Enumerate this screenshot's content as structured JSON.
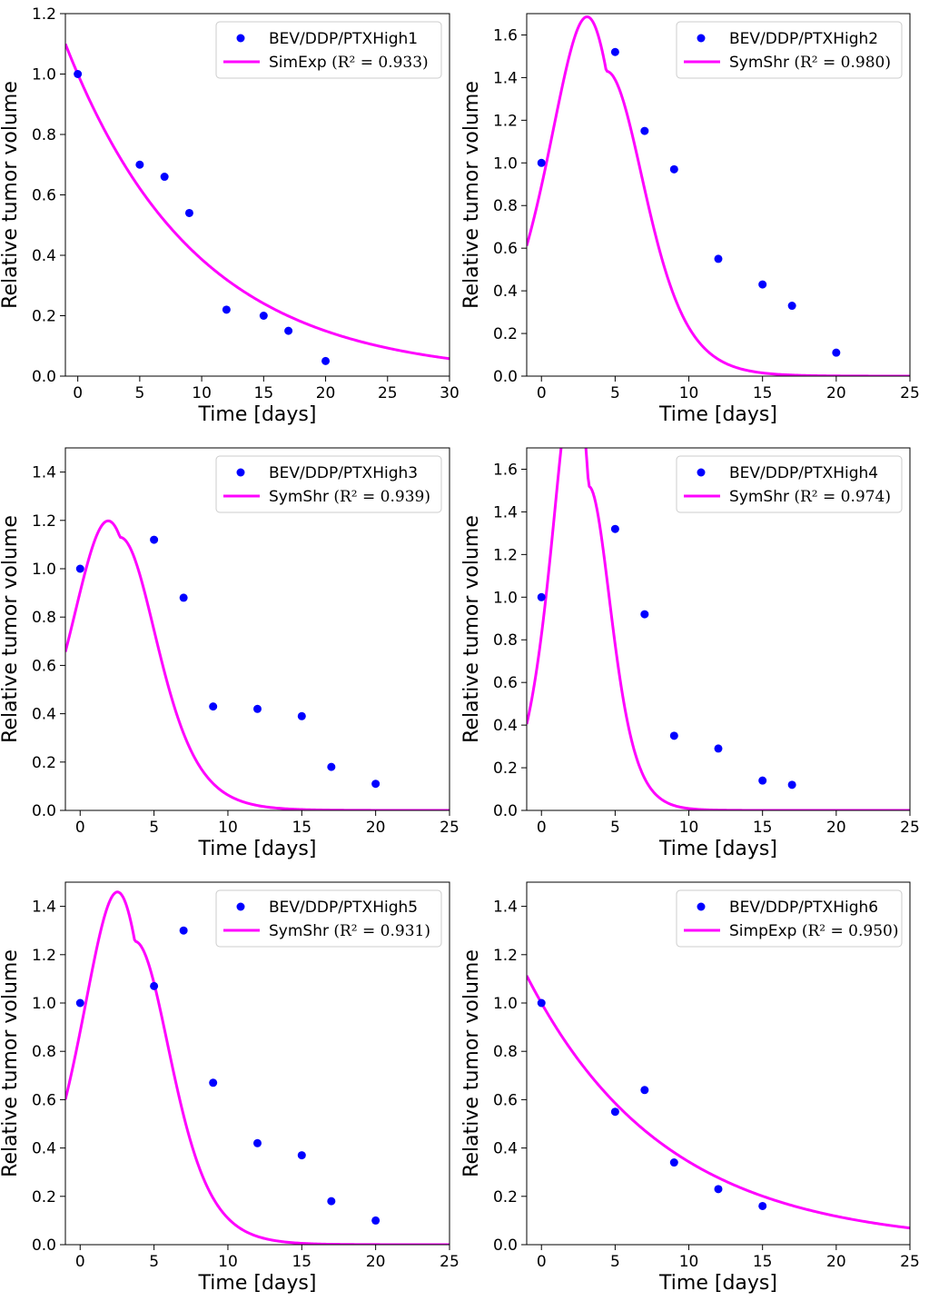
{
  "chart_data": [
    {
      "type": "scatter+line",
      "xlabel": "Time [days]",
      "ylabel": "Relative tumor volume",
      "xlim": [
        -1,
        30
      ],
      "ylim": [
        0,
        1.2
      ],
      "xticks": [
        0,
        5,
        10,
        15,
        20,
        25,
        30
      ],
      "yticks": [
        "0.0",
        "0.2",
        "0.4",
        "0.6",
        "0.8",
        "1.0",
        "1.2"
      ],
      "data_label": "BEV/DDP/PTXHigh1",
      "fit_label": "SimExp",
      "r2_label": "(R² = 0.933)",
      "data_points": {
        "x": [
          0,
          5,
          7,
          9,
          12,
          15,
          17,
          20
        ],
        "y": [
          1.0,
          0.7,
          0.66,
          0.54,
          0.22,
          0.2,
          0.15,
          0.05
        ]
      },
      "fit": {
        "model": "exponential",
        "a": 1.0,
        "b": 0.095
      }
    },
    {
      "type": "scatter+line",
      "xlabel": "Time [days]",
      "ylabel": "Relative tumor volume",
      "xlim": [
        -1,
        25
      ],
      "ylim": [
        0,
        1.7
      ],
      "xticks": [
        0,
        5,
        10,
        15,
        20,
        25
      ],
      "yticks": [
        "0.0",
        "0.2",
        "0.4",
        "0.6",
        "0.8",
        "1.0",
        "1.2",
        "1.4",
        "1.6"
      ],
      "data_label": "BEV/DDP/PTXHigh2",
      "fit_label": "SymShr",
      "r2_label": "(R² = 0.980)",
      "data_points": {
        "x": [
          0,
          5,
          7,
          9,
          12,
          15,
          17,
          20
        ],
        "y": [
          1.0,
          1.52,
          1.15,
          0.97,
          0.55,
          0.43,
          0.33,
          0.11
        ]
      },
      "fit": {
        "model": "logistic-shrink",
        "A": 1.43,
        "t0": 4.4,
        "w": 1.0,
        "k": 0.28
      }
    },
    {
      "type": "scatter+line",
      "xlabel": "Time [days]",
      "ylabel": "Relative tumor volume",
      "xlim": [
        -1,
        25
      ],
      "ylim": [
        0,
        1.5
      ],
      "xticks": [
        0,
        5,
        10,
        15,
        20,
        25
      ],
      "yticks": [
        "0.0",
        "0.2",
        "0.4",
        "0.6",
        "0.8",
        "1.0",
        "1.2",
        "1.4"
      ],
      "data_label": "BEV/DDP/PTXHigh3",
      "fit_label": "SymShr",
      "r2_label": "(R² = 0.939)",
      "data_points": {
        "x": [
          0,
          5,
          7,
          9,
          12,
          15,
          17,
          20
        ],
        "y": [
          1.0,
          1.12,
          0.88,
          0.43,
          0.42,
          0.39,
          0.18,
          0.11
        ]
      },
      "fit": {
        "model": "logistic-shrink",
        "A": 1.13,
        "t0": 2.7,
        "w": 0.5,
        "k": 0.29
      }
    },
    {
      "type": "scatter+line",
      "xlabel": "Time [days]",
      "ylabel": "Relative tumor volume",
      "xlim": [
        -1,
        25
      ],
      "ylim": [
        0,
        1.7
      ],
      "xticks": [
        0,
        5,
        10,
        15,
        20,
        25
      ],
      "yticks": [
        "0.0",
        "0.2",
        "0.4",
        "0.6",
        "0.8",
        "1.0",
        "1.2",
        "1.4",
        "1.6"
      ],
      "data_label": "BEV/DDP/PTXHigh4",
      "fit_label": "SymShr",
      "r2_label": "(R² = 0.974)",
      "data_points": {
        "x": [
          0,
          5,
          7,
          9,
          12,
          15,
          17
        ],
        "y": [
          1.0,
          1.32,
          0.92,
          0.35,
          0.29,
          0.14,
          0.12
        ]
      },
      "fit": {
        "model": "logistic-shrink",
        "A": 1.52,
        "t0": 3.2,
        "w": 0.5,
        "k": 0.48
      }
    },
    {
      "type": "scatter+line",
      "xlabel": "Time [days]",
      "ylabel": "Relative tumor volume",
      "xlim": [
        -1,
        25
      ],
      "ylim": [
        0,
        1.5
      ],
      "xticks": [
        0,
        5,
        10,
        15,
        20,
        25
      ],
      "yticks": [
        "0.0",
        "0.2",
        "0.4",
        "0.6",
        "0.8",
        "1.0",
        "1.2",
        "1.4"
      ],
      "data_label": "BEV/DDP/PTXHigh5",
      "fit_label": "SymShr",
      "r2_label": "(R² = 0.931)",
      "data_points": {
        "x": [
          0,
          5,
          7,
          9,
          12,
          15,
          17,
          20
        ],
        "y": [
          1.0,
          1.07,
          1.3,
          0.67,
          0.42,
          0.37,
          0.18,
          0.1
        ]
      },
      "fit": {
        "model": "logistic-shrink",
        "A": 1.255,
        "t0": 3.7,
        "w": 0.7,
        "k": 0.3
      }
    },
    {
      "type": "scatter+line",
      "xlabel": "Time [days]",
      "ylabel": "Relative tumor volume",
      "xlim": [
        -1,
        25
      ],
      "ylim": [
        0,
        1.5
      ],
      "xticks": [
        0,
        5,
        10,
        15,
        20,
        25
      ],
      "yticks": [
        "0.0",
        "0.2",
        "0.4",
        "0.6",
        "0.8",
        "1.0",
        "1.2",
        "1.4"
      ],
      "data_label": "BEV/DDP/PTXHigh6",
      "fit_label": "SimpExp",
      "r2_label": "(R² = 0.950)",
      "data_points": {
        "x": [
          0,
          5,
          7,
          9,
          12,
          15
        ],
        "y": [
          1.0,
          0.55,
          0.64,
          0.34,
          0.23,
          0.16
        ]
      },
      "fit": {
        "model": "exponential",
        "a": 1.0,
        "b": 0.107
      }
    }
  ],
  "colors": {
    "data": "#0000ff",
    "fit": "#ff00ff",
    "axis": "#000000",
    "legend_border": "#cccccc"
  }
}
